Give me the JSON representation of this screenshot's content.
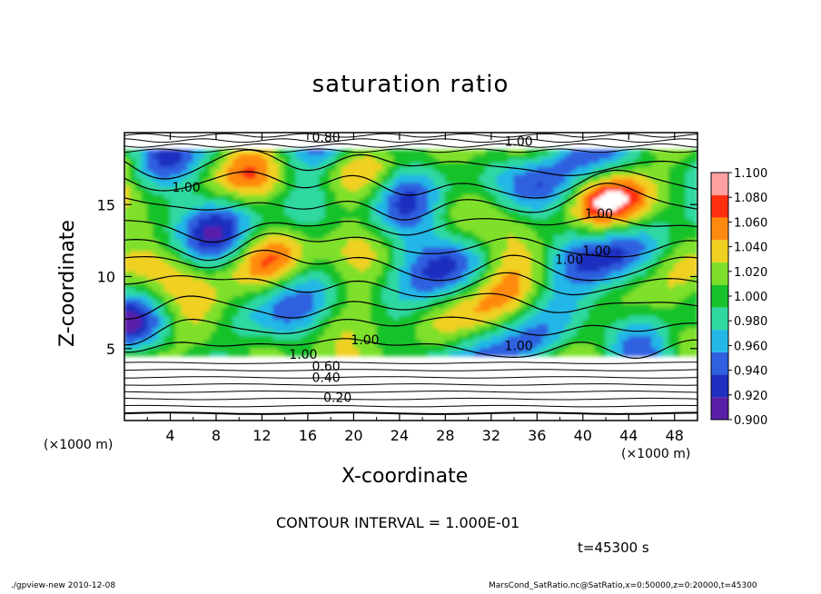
{
  "chart_data": {
    "type": "heatmap",
    "title": "saturation ratio",
    "xlabel": "X-coordinate",
    "ylabel": "Z-coordinate",
    "x_unit_label": "(×1000 m)",
    "xlim": [
      0,
      50
    ],
    "ylim": [
      0,
      20
    ],
    "xticks": [
      4,
      8,
      12,
      16,
      20,
      24,
      28,
      32,
      36,
      40,
      44,
      48
    ],
    "yticks": [
      5,
      10,
      15
    ],
    "colorbar": {
      "levels": [
        0.9,
        0.92,
        0.94,
        0.96,
        0.98,
        1.0,
        1.02,
        1.04,
        1.06,
        1.08,
        1.1
      ],
      "labels": [
        "0.900",
        "0.920",
        "0.940",
        "0.960",
        "0.980",
        "1.000",
        "1.020",
        "1.040",
        "1.060",
        "1.080",
        "1.100"
      ],
      "colors": [
        "#5a1fa8",
        "#1f2fbf",
        "#2e60e0",
        "#23b7e6",
        "#2fd8a0",
        "#17c22a",
        "#7ee02b",
        "#f0d020",
        "#ff8a10",
        "#ff2f10",
        "#ffa0a0"
      ]
    },
    "contour_labels": [
      {
        "text": "0.20",
        "x": 18.6,
        "z": 1.6
      },
      {
        "text": "0.40",
        "x": 17.6,
        "z": 3.0
      },
      {
        "text": "0.60",
        "x": 17.6,
        "z": 3.8
      },
      {
        "text": "1.00",
        "x": 15.6,
        "z": 4.6
      },
      {
        "text": "1.00",
        "x": 21.0,
        "z": 5.6
      },
      {
        "text": "1.00",
        "x": 34.4,
        "z": 5.2
      },
      {
        "text": "0.80",
        "x": 17.6,
        "z": 19.7
      },
      {
        "text": "1.00",
        "x": 34.4,
        "z": 19.4
      },
      {
        "text": "1.00",
        "x": 5.4,
        "z": 16.2
      },
      {
        "text": "1.00",
        "x": 41.4,
        "z": 14.4
      },
      {
        "text": "1.00",
        "x": 41.2,
        "z": 11.8
      },
      {
        "text": "1.00",
        "x": 38.8,
        "z": 11.2
      }
    ],
    "fields": {
      "lower_layer_top_z": 4.5,
      "upper_layer_bottom_z": 18.5,
      "lower_contours": [
        0.2,
        0.3,
        0.4,
        0.5,
        0.6,
        0.7,
        0.8,
        0.9
      ],
      "upper_contours": [
        0.6,
        0.7,
        0.8,
        0.9
      ]
    }
  },
  "annotations": {
    "contour_interval": "CONTOUR INTERVAL = 1.000E-01",
    "time": "t=45300 s",
    "footer_left": "./gpview-new   2010-12-08",
    "footer_right": "MarsCond_SatRatio.nc@SatRatio,x=0:50000,z=0:20000,t=45300"
  }
}
